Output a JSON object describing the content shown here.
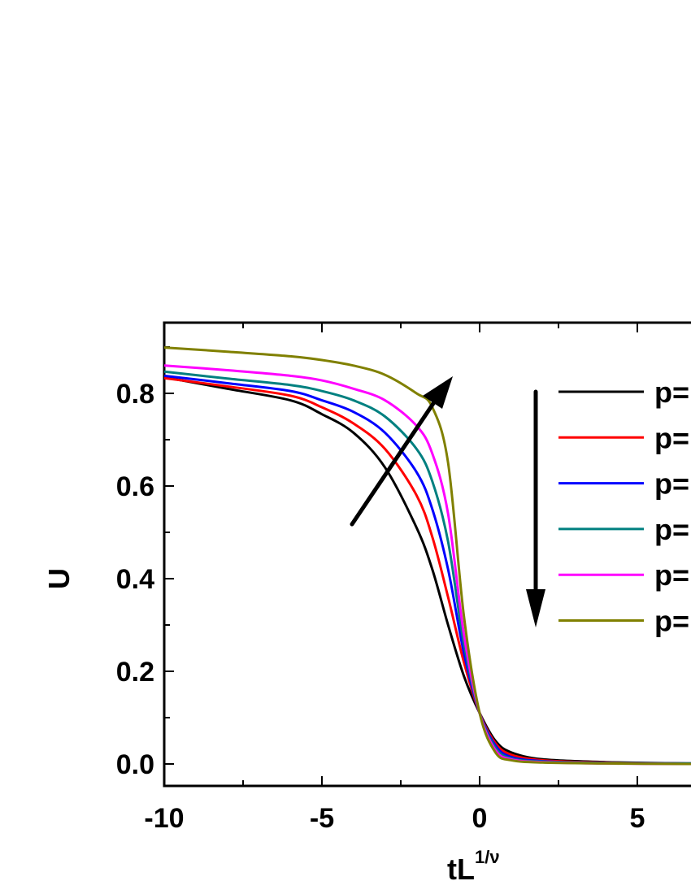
{
  "chart_data": {
    "type": "line",
    "title": "",
    "xlabel": "tL",
    "xlabel_superscript": "1/ν",
    "ylabel": "U",
    "xlim": [
      -10,
      6.7
    ],
    "ylim": [
      -0.047,
      0.953
    ],
    "x_ticks": [
      "-10",
      "-5",
      "0",
      "5"
    ],
    "y_ticks": [
      "0.0",
      "0.2",
      "0.4",
      "0.6",
      "0.8"
    ],
    "grid": false,
    "legend_placement": "right",
    "x": [
      -10,
      -8,
      -6,
      -5,
      -4,
      -3,
      -2,
      -1.5,
      -1,
      -0.5,
      0,
      0.5,
      1,
      2,
      4,
      6.7
    ],
    "series": [
      {
        "name": "p=",
        "color": "#000000",
        "values": [
          0.835,
          0.81,
          0.785,
          0.755,
          0.715,
          0.64,
          0.51,
          0.42,
          0.3,
          0.19,
          0.11,
          0.05,
          0.025,
          0.01,
          0.004,
          0.001
        ]
      },
      {
        "name": "p=",
        "color": "#ff0000",
        "values": [
          0.833,
          0.815,
          0.795,
          0.77,
          0.735,
          0.68,
          0.58,
          0.49,
          0.36,
          0.22,
          0.11,
          0.045,
          0.02,
          0.008,
          0.003,
          0.001
        ]
      },
      {
        "name": "p=",
        "color": "#0000ff",
        "values": [
          0.838,
          0.822,
          0.805,
          0.785,
          0.76,
          0.715,
          0.63,
          0.55,
          0.42,
          0.24,
          0.11,
          0.04,
          0.015,
          0.006,
          0.002,
          0.001
        ]
      },
      {
        "name": "p=",
        "color": "#008080",
        "values": [
          0.847,
          0.832,
          0.818,
          0.805,
          0.785,
          0.75,
          0.68,
          0.61,
          0.48,
          0.26,
          0.11,
          0.035,
          0.012,
          0.005,
          0.002,
          0.001
        ]
      },
      {
        "name": "p=",
        "color": "#ff00ff",
        "values": [
          0.86,
          0.85,
          0.838,
          0.828,
          0.81,
          0.785,
          0.73,
          0.67,
          0.54,
          0.28,
          0.11,
          0.03,
          0.01,
          0.004,
          0.001,
          0.0
        ]
      },
      {
        "name": "p=",
        "color": "#808000",
        "values": [
          0.899,
          0.89,
          0.88,
          0.872,
          0.86,
          0.84,
          0.8,
          0.77,
          0.65,
          0.32,
          0.11,
          0.025,
          0.008,
          0.003,
          0.001,
          0.0
        ]
      }
    ],
    "annotations": [
      "arrow-increasing-diagonal",
      "arrow-down-legend-order"
    ]
  }
}
